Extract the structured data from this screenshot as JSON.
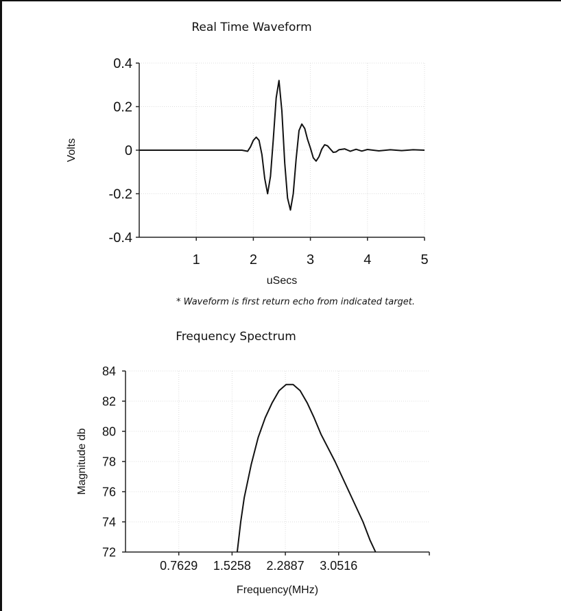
{
  "chart_data": [
    {
      "type": "line",
      "title": "Real Time Waveform",
      "xlabel": "uSecs",
      "ylabel": "Volts",
      "xlim": [
        0,
        5
      ],
      "ylim": [
        -0.4,
        0.4
      ],
      "x_ticks": [
        "1",
        "2",
        "3",
        "4",
        "5"
      ],
      "y_ticks": [
        "0.4",
        "0.2",
        "0",
        "-0.2",
        "-0.4"
      ],
      "grid": true,
      "series": [
        {
          "color": "#111111",
          "x": [
            0,
            0.5,
            1.0,
            1.5,
            1.8,
            1.9,
            1.95,
            2.0,
            2.05,
            2.1,
            2.15,
            2.2,
            2.25,
            2.3,
            2.35,
            2.4,
            2.45,
            2.5,
            2.55,
            2.6,
            2.65,
            2.7,
            2.75,
            2.8,
            2.85,
            2.9,
            2.95,
            3.0,
            3.05,
            3.1,
            3.15,
            3.2,
            3.25,
            3.3,
            3.35,
            3.4,
            3.45,
            3.5,
            3.6,
            3.7,
            3.8,
            3.9,
            4.0,
            4.2,
            4.4,
            4.6,
            4.8,
            5.0
          ],
          "y": [
            0,
            0,
            0,
            0,
            0,
            -0.005,
            0.015,
            0.045,
            0.06,
            0.045,
            -0.02,
            -0.13,
            -0.2,
            -0.12,
            0.05,
            0.24,
            0.32,
            0.18,
            -0.06,
            -0.22,
            -0.275,
            -0.2,
            -0.04,
            0.09,
            0.12,
            0.1,
            0.05,
            0.01,
            -0.035,
            -0.05,
            -0.03,
            0.005,
            0.025,
            0.02,
            0.005,
            -0.01,
            -0.008,
            0.002,
            0.006,
            -0.005,
            0.004,
            -0.004,
            0.003,
            -0.003,
            0.002,
            -0.002,
            0.002,
            0.0
          ]
        }
      ],
      "note": "* Waveform is first return echo from indicated target."
    },
    {
      "type": "line",
      "title": "Frequency Spectrum",
      "xlabel": "Frequency(MHz)",
      "ylabel": "Magnitude db",
      "xlim": [
        0,
        4.35
      ],
      "ylim": [
        72,
        84
      ],
      "x_tick_values": [
        0.7629,
        1.5258,
        2.2887,
        3.0516
      ],
      "x_ticks": [
        "0.7629",
        "1.5258",
        "2.2887",
        "3.0516"
      ],
      "y_ticks": [
        "84",
        "82",
        "80",
        "78",
        "76",
        "74",
        "72"
      ],
      "grid": true,
      "series": [
        {
          "color": "#111111",
          "x": [
            1.6,
            1.65,
            1.7,
            1.8,
            1.9,
            2.0,
            2.1,
            2.2,
            2.3,
            2.4,
            2.5,
            2.6,
            2.7,
            2.8,
            2.9,
            3.0,
            3.1,
            3.2,
            3.3,
            3.4,
            3.5,
            3.58
          ],
          "y": [
            72.0,
            74.0,
            75.6,
            77.8,
            79.6,
            80.9,
            81.9,
            82.7,
            83.1,
            83.1,
            82.7,
            81.9,
            80.9,
            79.8,
            78.9,
            78.0,
            77.0,
            76.0,
            75.0,
            74.0,
            72.8,
            72.0
          ]
        }
      ]
    }
  ]
}
